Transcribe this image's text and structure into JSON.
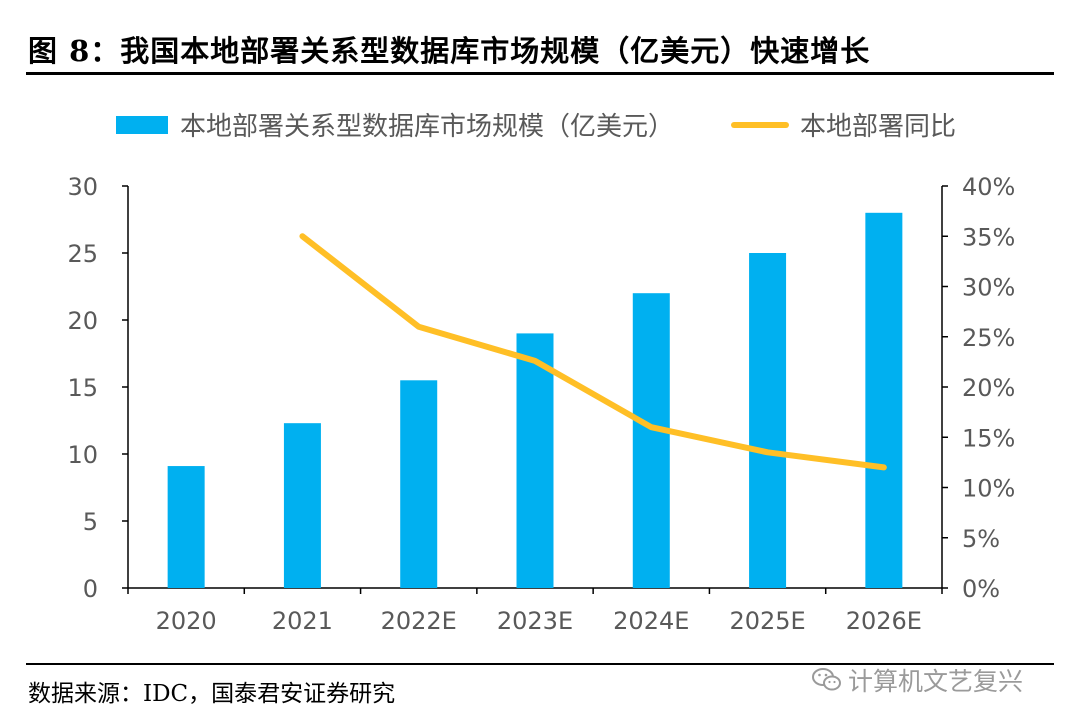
{
  "figure": {
    "title": "图 8：我国本地部署关系型数据库市场规模（亿美元）快速增长",
    "source": "数据来源：IDC，国泰君安证券研究",
    "watermark": "计算机文艺复兴"
  },
  "colors": {
    "bar": "#00b0f0",
    "line": "#ffbf26",
    "axis": "#000000",
    "text": "#595959"
  },
  "chart_data": {
    "type": "bar",
    "title": "我国本地部署关系型数据库市场规模（亿美元）快速增长",
    "categories": [
      "2020",
      "2021",
      "2022E",
      "2023E",
      "2024E",
      "2025E",
      "2026E"
    ],
    "series": [
      {
        "name": "本地部署关系型数据库市场规模（亿美元）",
        "type": "bar",
        "axis": "left",
        "values": [
          9.1,
          12.3,
          15.5,
          19.0,
          22.0,
          25.0,
          28.0
        ]
      },
      {
        "name": "本地部署同比",
        "type": "line",
        "axis": "right",
        "values": [
          null,
          0.35,
          0.26,
          0.226,
          0.16,
          0.135,
          0.12
        ]
      }
    ],
    "left_axis": {
      "min": 0,
      "max": 30,
      "ticks": [
        0,
        5,
        10,
        15,
        20,
        25,
        30
      ],
      "tick_labels": [
        "0",
        "5",
        "10",
        "15",
        "20",
        "25",
        "30"
      ]
    },
    "right_axis": {
      "min": 0,
      "max": 0.4,
      "ticks": [
        0,
        0.05,
        0.1,
        0.15,
        0.2,
        0.25,
        0.3,
        0.35,
        0.4
      ],
      "tick_labels": [
        "0%",
        "5%",
        "10%",
        "15%",
        "20%",
        "25%",
        "30%",
        "35%",
        "40%"
      ]
    },
    "legend_position": "top",
    "grid": false
  }
}
